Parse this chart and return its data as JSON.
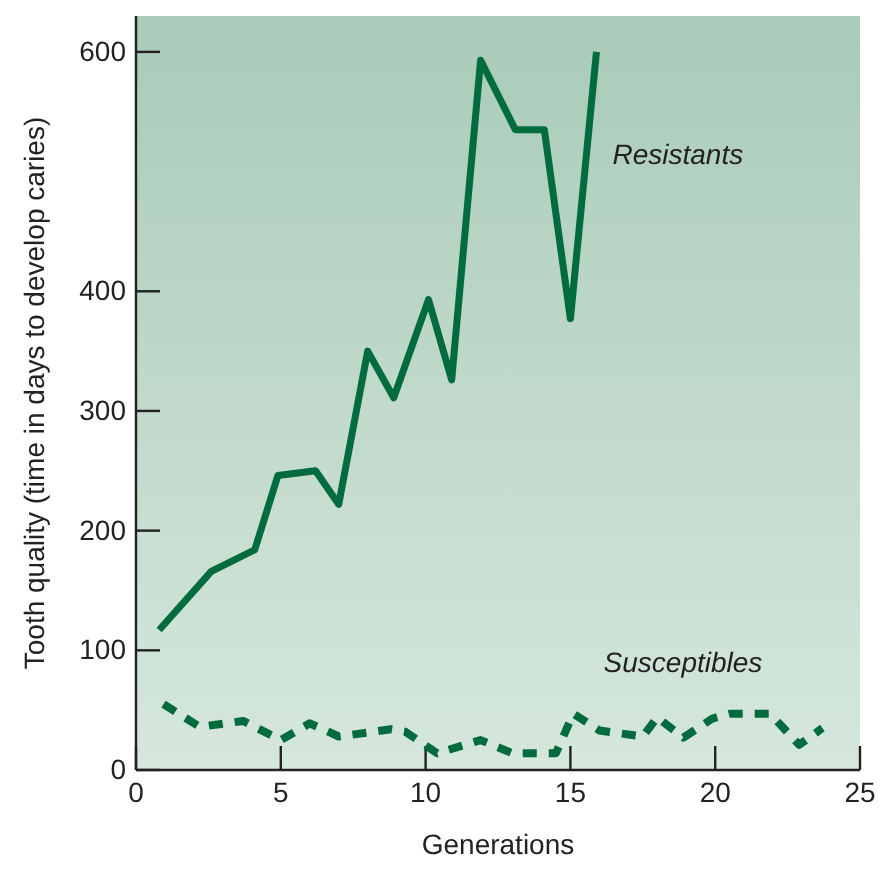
{
  "chart_data": {
    "type": "line",
    "xlabel": "Generations",
    "ylabel": "Tooth quality (time in days to develop caries)",
    "xlim": [
      0,
      25
    ],
    "ylim": [
      0,
      630
    ],
    "xticks": [
      0,
      5,
      10,
      15,
      20,
      25
    ],
    "yticks": [
      0,
      100,
      200,
      300,
      400,
      600
    ],
    "grid": false,
    "marker": "none",
    "series": [
      {
        "name": "Resistants",
        "color": "#006b3c",
        "line_style": "solid",
        "x": [
          0.8,
          2.6,
          4.1,
          4.9,
          6.2,
          7.0,
          8.0,
          8.9,
          10.1,
          10.9,
          11.9,
          13.1,
          14.1,
          15.0,
          15.9
        ],
        "values": [
          117,
          166,
          184,
          246,
          250,
          222,
          350,
          311,
          393,
          326,
          593,
          535,
          535,
          377,
          600
        ]
      },
      {
        "name": "Susceptibles",
        "color": "#006b3c",
        "line_style": "dashed",
        "x": [
          0.95,
          2.2,
          3.7,
          5.0,
          6.0,
          7.0,
          8.8,
          9.3,
          10.4,
          11.9,
          13.0,
          14.5,
          15.1,
          16.0,
          17.5,
          18.0,
          18.9,
          19.9,
          20.5,
          21.9,
          22.9,
          23.7
        ],
        "values": [
          55,
          36,
          41,
          25,
          39,
          28,
          34,
          32,
          14,
          25,
          14,
          14,
          47,
          33,
          28,
          44,
          27,
          43,
          47,
          47,
          21,
          35
        ]
      }
    ]
  }
}
